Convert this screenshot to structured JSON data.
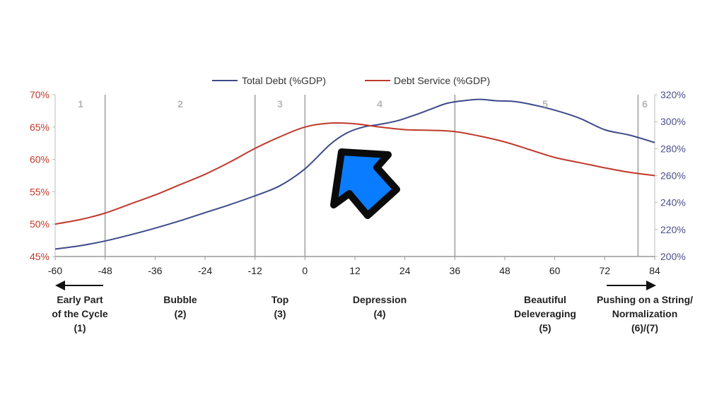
{
  "chart_data": {
    "type": "line",
    "x_ticks": [
      -60,
      -48,
      -36,
      -24,
      -12,
      0,
      12,
      24,
      36,
      48,
      60,
      72,
      84
    ],
    "xlim": [
      -60,
      84
    ],
    "y_left": {
      "ticks": [
        "45%",
        "50%",
        "55%",
        "60%",
        "65%",
        "70%"
      ],
      "lim": [
        45,
        70
      ]
    },
    "y_right": {
      "ticks": [
        "200%",
        "220%",
        "240%",
        "260%",
        "280%",
        "300%",
        "320%"
      ],
      "lim": [
        200,
        320
      ]
    },
    "legend": {
      "placement": "top-center"
    },
    "series": [
      {
        "name": "Total Debt (%GDP)",
        "axis": "right",
        "color": "#3d4a8a",
        "x": [
          -60,
          -54,
          -48,
          -42,
          -36,
          -30,
          -24,
          -18,
          -12,
          -6,
          0,
          6,
          10,
          14,
          18,
          22,
          26,
          30,
          34,
          38,
          42,
          46,
          50,
          54,
          60,
          66,
          72,
          78,
          84
        ],
        "y": [
          205.5,
          208,
          211.5,
          216,
          221,
          226.5,
          232.5,
          238.5,
          245,
          252.5,
          265,
          283,
          291.5,
          296,
          298,
          300.5,
          304.5,
          309,
          313.5,
          315.5,
          316.5,
          315.5,
          315,
          313,
          308.5,
          302.5,
          294,
          290,
          284.5
        ]
      },
      {
        "name": "Debt Service (%GDP)",
        "axis": "left",
        "color": "#c0392b",
        "x": [
          -60,
          -54,
          -48,
          -42,
          -36,
          -30,
          -24,
          -18,
          -12,
          -6,
          0,
          6,
          12,
          18,
          24,
          30,
          36,
          42,
          48,
          54,
          60,
          66,
          72,
          78,
          84
        ],
        "y": [
          50.0,
          50.7,
          51.7,
          53.1,
          54.5,
          56.1,
          57.7,
          59.6,
          61.7,
          63.5,
          65.0,
          65.6,
          65.5,
          65.0,
          64.6,
          64.5,
          64.3,
          63.6,
          62.7,
          61.5,
          60.3,
          59.5,
          58.7,
          58.0,
          57.5
        ]
      }
    ],
    "phase_dividers": [
      -48,
      -12,
      0,
      36,
      80
    ],
    "phases": [
      {
        "number": "1",
        "x": -60,
        "lines": [
          "Early Part",
          "of the Cycle",
          "(1)"
        ],
        "arrow": "left"
      },
      {
        "number": "2",
        "x": -24,
        "lines": [
          "Bubble",
          "(2)"
        ]
      },
      {
        "number": "3",
        "x": -6,
        "lines": [
          "Top",
          "(3)"
        ]
      },
      {
        "number": "4",
        "x": 18,
        "lines": [
          "Depression",
          "(4)"
        ]
      },
      {
        "number": "5",
        "x": 58,
        "lines": [
          "Beautiful",
          "Deleveraging",
          "(5)"
        ]
      },
      {
        "number": "6",
        "x": 82,
        "lines": [
          "Pushing on a String/",
          "Normalization",
          "(6)/(7)"
        ],
        "arrow": "right"
      }
    ]
  },
  "cursor": {
    "icon": "cursor-arrow-icon",
    "color": "#0a7cff"
  }
}
